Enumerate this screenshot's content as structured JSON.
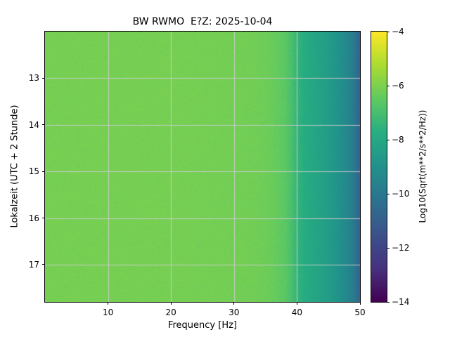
{
  "chart_data": {
    "type": "heatmap",
    "title": "BW RWMO  E?Z: 2025-10-04",
    "xlabel": "Frequency [Hz]",
    "ylabel": "Lokalzeit (UTC + 2 Stunde)",
    "colorbar_label": "Log10(Sqrt(m**2/s**2/Hz))",
    "colormap": "viridis",
    "grid": true,
    "grid_color": "#cccccc",
    "x_range": [
      0,
      50
    ],
    "y_range": [
      12.0,
      17.8
    ],
    "value_range": [
      -14,
      -4
    ],
    "x_ticks": [
      {
        "value": 10,
        "label": "10"
      },
      {
        "value": 20,
        "label": "20"
      },
      {
        "value": 30,
        "label": "30"
      },
      {
        "value": 40,
        "label": "40"
      },
      {
        "value": 50,
        "label": "50"
      }
    ],
    "y_ticks": [
      {
        "value": 13,
        "label": "13"
      },
      {
        "value": 14,
        "label": "14"
      },
      {
        "value": 15,
        "label": "15"
      },
      {
        "value": 16,
        "label": "16"
      },
      {
        "value": 17,
        "label": "17"
      }
    ],
    "colorbar_ticks": [
      {
        "value": -4,
        "label": "−4"
      },
      {
        "value": -6,
        "label": "−6"
      },
      {
        "value": -8,
        "label": "−8"
      },
      {
        "value": -10,
        "label": "−10"
      },
      {
        "value": -12,
        "label": "−12"
      },
      {
        "value": -14,
        "label": "−14"
      }
    ],
    "background_spectrum": {
      "frequency_hz": [
        0,
        10,
        20,
        30,
        34,
        36,
        38,
        39,
        40,
        41,
        42,
        43,
        44,
        45,
        46,
        47,
        48,
        49,
        50
      ],
      "log10_amplitude": [
        -6.1,
        -6.1,
        -6.1,
        -6.15,
        -6.2,
        -6.3,
        -6.55,
        -6.9,
        -7.4,
        -7.75,
        -7.95,
        -8.1,
        -8.3,
        -8.5,
        -8.75,
        -9.05,
        -9.4,
        -9.9,
        -10.8
      ]
    },
    "noise_std": 0.2
  }
}
